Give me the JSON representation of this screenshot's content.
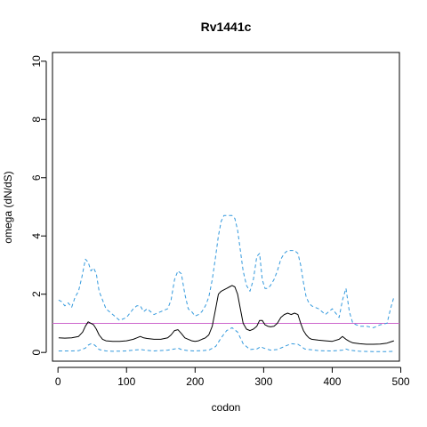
{
  "chart_data": {
    "type": "line",
    "title": "Rv1441c",
    "xlabel": "codon",
    "ylabel": "omega (dN/dS)",
    "xlim": [
      -8,
      498
    ],
    "ylim": [
      -0.3,
      10.3
    ],
    "xticks": [
      0,
      100,
      200,
      300,
      400,
      500
    ],
    "yticks": [
      0,
      2,
      4,
      6,
      8,
      10
    ],
    "grid": false,
    "reference_line": {
      "y": 1,
      "color": "#cc66cc"
    },
    "series": [
      {
        "style": "solid",
        "color": "#000000",
        "x": [
          1,
          10,
          20,
          30,
          36,
          40,
          44,
          48,
          52,
          56,
          60,
          65,
          70,
          80,
          90,
          100,
          110,
          115,
          120,
          125,
          130,
          140,
          150,
          160,
          165,
          170,
          175,
          180,
          185,
          190,
          195,
          200,
          205,
          210,
          215,
          220,
          225,
          230,
          234,
          238,
          242,
          246,
          250,
          254,
          258,
          262,
          266,
          270,
          275,
          280,
          285,
          290,
          294,
          298,
          302,
          306,
          310,
          315,
          320,
          325,
          330,
          335,
          340,
          345,
          350,
          354,
          358,
          362,
          366,
          370,
          380,
          390,
          400,
          410,
          415,
          420,
          425,
          430,
          440,
          450,
          460,
          470,
          480,
          485,
          490
        ],
        "y": [
          0.5,
          0.49,
          0.5,
          0.55,
          0.7,
          0.9,
          1.05,
          1.0,
          0.95,
          0.8,
          0.6,
          0.45,
          0.4,
          0.38,
          0.38,
          0.4,
          0.45,
          0.5,
          0.55,
          0.5,
          0.48,
          0.45,
          0.45,
          0.5,
          0.6,
          0.75,
          0.78,
          0.65,
          0.5,
          0.45,
          0.4,
          0.38,
          0.4,
          0.45,
          0.5,
          0.6,
          0.9,
          1.5,
          2.0,
          2.1,
          2.15,
          2.2,
          2.25,
          2.3,
          2.25,
          2.0,
          1.5,
          1.0,
          0.8,
          0.75,
          0.8,
          0.9,
          1.1,
          1.1,
          0.95,
          0.9,
          0.88,
          0.9,
          1.0,
          1.2,
          1.3,
          1.35,
          1.3,
          1.35,
          1.3,
          1.0,
          0.75,
          0.6,
          0.5,
          0.45,
          0.42,
          0.4,
          0.38,
          0.45,
          0.55,
          0.45,
          0.38,
          0.33,
          0.3,
          0.28,
          0.28,
          0.29,
          0.32,
          0.36,
          0.4
        ]
      },
      {
        "style": "dashed",
        "color": "#3399dd",
        "x": [
          1,
          5,
          10,
          15,
          20,
          25,
          30,
          35,
          40,
          44,
          48,
          52,
          56,
          60,
          65,
          70,
          80,
          90,
          100,
          110,
          115,
          120,
          125,
          130,
          140,
          150,
          160,
          165,
          170,
          175,
          180,
          185,
          190,
          195,
          200,
          205,
          210,
          215,
          220,
          225,
          230,
          234,
          238,
          242,
          246,
          250,
          254,
          258,
          262,
          266,
          270,
          275,
          280,
          285,
          290,
          294,
          298,
          302,
          306,
          310,
          315,
          320,
          325,
          330,
          335,
          340,
          345,
          350,
          354,
          358,
          362,
          366,
          370,
          380,
          390,
          400,
          410,
          415,
          420,
          425,
          430,
          440,
          450,
          460,
          470,
          480,
          485,
          490
        ],
        "y": [
          1.8,
          1.75,
          1.6,
          1.7,
          1.55,
          1.9,
          2.1,
          2.6,
          3.2,
          3.1,
          2.8,
          2.9,
          2.7,
          2.1,
          1.8,
          1.5,
          1.3,
          1.1,
          1.2,
          1.5,
          1.6,
          1.6,
          1.4,
          1.5,
          1.3,
          1.4,
          1.5,
          1.8,
          2.5,
          2.8,
          2.7,
          2.0,
          1.5,
          1.4,
          1.25,
          1.3,
          1.4,
          1.6,
          1.9,
          2.5,
          3.3,
          4.0,
          4.5,
          4.7,
          4.7,
          4.7,
          4.7,
          4.6,
          4.2,
          3.5,
          2.8,
          2.3,
          2.1,
          2.5,
          3.3,
          3.4,
          2.5,
          2.2,
          2.2,
          2.3,
          2.5,
          2.8,
          3.2,
          3.4,
          3.5,
          3.5,
          3.5,
          3.4,
          3.0,
          2.4,
          1.9,
          1.7,
          1.6,
          1.5,
          1.3,
          1.5,
          1.2,
          1.8,
          2.2,
          1.4,
          1.0,
          0.9,
          0.9,
          0.85,
          0.95,
          1.0,
          1.5,
          1.9
        ]
      },
      {
        "style": "dashed",
        "color": "#3399dd",
        "x": [
          1,
          20,
          30,
          40,
          44,
          48,
          52,
          56,
          60,
          70,
          80,
          100,
          110,
          120,
          130,
          140,
          160,
          170,
          175,
          180,
          190,
          200,
          210,
          220,
          230,
          238,
          246,
          254,
          262,
          270,
          280,
          290,
          296,
          300,
          310,
          320,
          330,
          340,
          350,
          355,
          360,
          380,
          400,
          415,
          420,
          425,
          440,
          460,
          480,
          490
        ],
        "y": [
          0.05,
          0.05,
          0.06,
          0.15,
          0.25,
          0.3,
          0.28,
          0.2,
          0.1,
          0.05,
          0.04,
          0.05,
          0.08,
          0.1,
          0.07,
          0.05,
          0.08,
          0.12,
          0.15,
          0.1,
          0.06,
          0.05,
          0.06,
          0.08,
          0.2,
          0.5,
          0.75,
          0.85,
          0.7,
          0.3,
          0.1,
          0.12,
          0.2,
          0.15,
          0.08,
          0.1,
          0.2,
          0.3,
          0.28,
          0.2,
          0.12,
          0.06,
          0.05,
          0.08,
          0.12,
          0.08,
          0.04,
          0.03,
          0.03,
          0.04
        ]
      }
    ]
  }
}
